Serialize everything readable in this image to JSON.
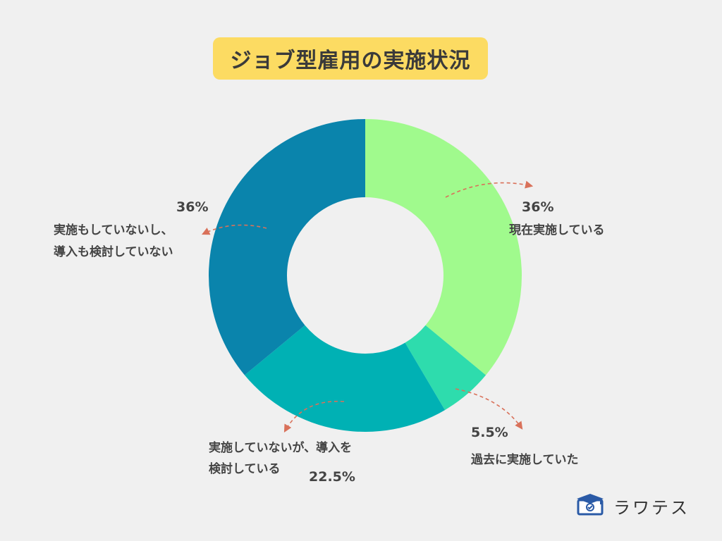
{
  "title": "ジョブ型雇用の実施状況",
  "chart_data": {
    "type": "donut",
    "title": "ジョブ型雇用の実施状況",
    "slices": [
      {
        "label_lines": [
          "現在実施している"
        ],
        "value": 36,
        "value_label": "36%",
        "color": "#a0fa8d"
      },
      {
        "label_lines": [
          "過去に実施していた"
        ],
        "value": 5.5,
        "value_label": "5.5%",
        "color": "#2edcad"
      },
      {
        "label_lines": [
          "実施していないが、導入を",
          "検討している"
        ],
        "value": 22.5,
        "value_label": "22.5%",
        "color": "#00b1b4"
      },
      {
        "label_lines": [
          "実施もしていないし、",
          "導入も検討していない"
        ],
        "value": 36,
        "value_label": "36%",
        "color": "#0a84ac"
      }
    ]
  },
  "logo": {
    "text": "ラワテス",
    "icon": "monitor-graduation-cap-icon"
  }
}
